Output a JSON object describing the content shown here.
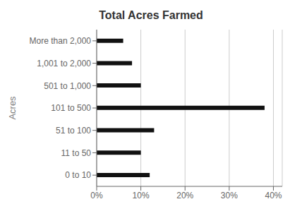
{
  "chart_data": {
    "type": "bar",
    "orientation": "horizontal",
    "title": "Total Acres Farmed",
    "ylabel": "Acres",
    "categories": [
      "0 to 10",
      "11 to 50",
      "51 to 100",
      "101 to 500",
      "501 to 1,000",
      "1,001 to 2,000",
      "More than 2,000"
    ],
    "values": [
      0.12,
      0.1,
      0.13,
      0.38,
      0.1,
      0.08,
      0.06
    ],
    "color": "#111111",
    "xlim": [
      0,
      0.42
    ],
    "xticks": [
      {
        "value": 0.0,
        "label": "0%"
      },
      {
        "value": 0.1,
        "label": "10%"
      },
      {
        "value": 0.2,
        "label": "20%"
      },
      {
        "value": 0.3,
        "label": "30%"
      },
      {
        "value": 0.4,
        "label": "40%"
      }
    ],
    "grid": true
  }
}
